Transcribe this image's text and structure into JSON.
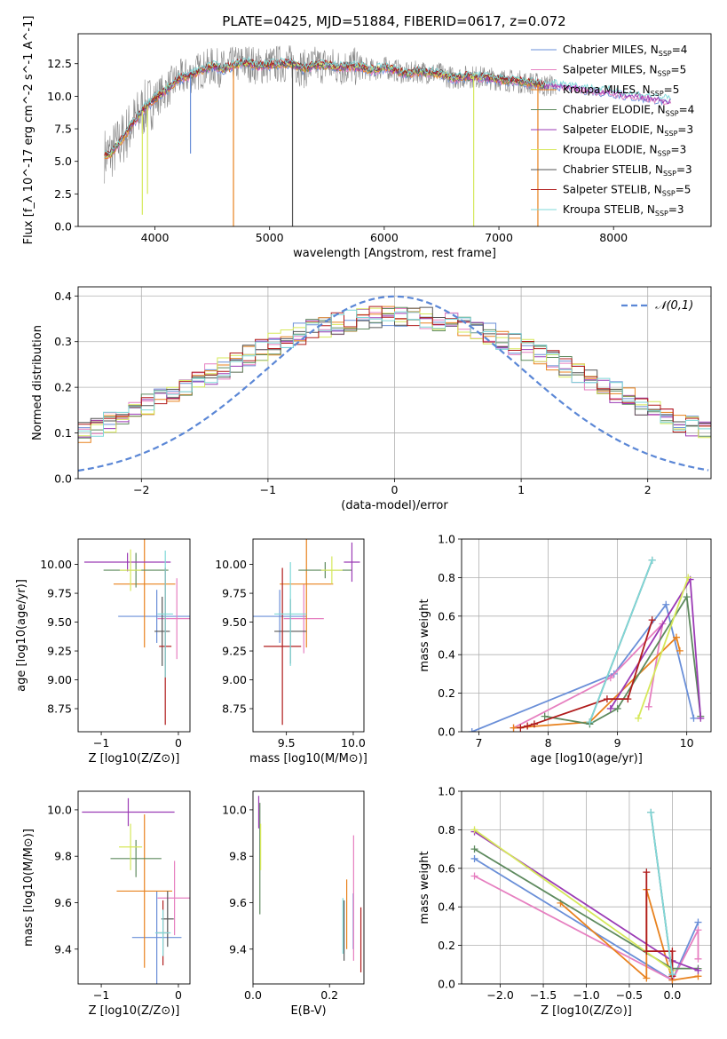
{
  "page_title": "PLATE=0425, MJD=51884, FIBERID=0617, z=0.072",
  "series_names": [
    "Chabrier MILES, N_SSP=4",
    "Salpeter MILES, N_SSP=5",
    "Kroupa MILES, N_SSP=5",
    "Chabrier ELODIE, N_SSP=4",
    "Salpeter ELODIE, N_SSP=3",
    "Kroupa ELODIE, N_SSP=3",
    "Chabrier STELIB, N_SSP=3",
    "Salpeter STELIB, N_SSP=5",
    "Kroupa STELIB, N_SSP=3"
  ],
  "series_colors": [
    "#6a8fd8",
    "#e67fc0",
    "#e8821e",
    "#5e8a5e",
    "#9b3bb5",
    "#d6e85a",
    "#555555",
    "#b01c1c",
    "#7fd8d8"
  ],
  "chart_data": [
    {
      "id": "spectrum",
      "type": "line",
      "title": "PLATE=0425, MJD=51884, FIBERID=0617, z=0.072",
      "xlabel": "wavelength [Angstrom, rest frame]",
      "ylabel": "Flux [f_λ 10^-17 erg cm^-2 s^-1 A^-1]",
      "xlim": [
        3330,
        8850
      ],
      "ylim": [
        0,
        14.8
      ],
      "xticks": [
        "4000",
        "5000",
        "6000",
        "7000",
        "8000"
      ],
      "yticks": [
        "0.0",
        "2.5",
        "5.0",
        "7.5",
        "10.0",
        "12.5"
      ],
      "legend": "right",
      "data_x": [
        3600,
        3700,
        3800,
        3900,
        4000,
        4100,
        4200,
        4300,
        4400,
        4500,
        4600,
        4700,
        4800,
        4900,
        5000,
        5100,
        5200,
        5300,
        5400,
        5500,
        5600,
        5700,
        5800,
        5900,
        6000,
        6100,
        6200,
        6300,
        6400,
        6500,
        6600,
        6700,
        6800,
        6900,
        7000,
        7100,
        7200,
        7300,
        7400,
        7500,
        7600,
        7700,
        7800,
        7900,
        8000,
        8100,
        8200,
        8300,
        8400,
        8500
      ],
      "data_y": [
        5.5,
        6.5,
        7.8,
        9.0,
        9.8,
        10.5,
        11.3,
        11.6,
        12.0,
        12.3,
        12.1,
        12.4,
        12.6,
        12.3,
        12.4,
        12.5,
        12.5,
        12.1,
        12.4,
        12.4,
        12.2,
        12.3,
        12.2,
        12.0,
        12.2,
        12.0,
        11.7,
        11.9,
        11.8,
        11.7,
        11.4,
        11.5,
        11.5,
        11.4,
        11.3,
        11.2,
        11.1,
        11.0,
        10.8,
        10.9,
        10.8,
        10.6,
        10.5,
        10.4,
        10.3,
        10.1,
        10.0,
        9.9,
        9.8,
        9.6
      ],
      "dips": [
        {
          "x": 3890,
          "y": 0.9,
          "series": 5
        },
        {
          "x": 3935,
          "y": 2.5,
          "series": 5
        },
        {
          "x": 4310,
          "y": 5.6,
          "series": 0
        },
        {
          "x": 4685,
          "y": 0.0,
          "series": 2
        },
        {
          "x": 5200,
          "y": 0.0,
          "series": 6
        },
        {
          "x": 6780,
          "y": 0.0,
          "series": 5
        },
        {
          "x": 7340,
          "y": 0.0,
          "series": 2
        }
      ]
    },
    {
      "id": "residuals",
      "type": "step",
      "xlabel": "(data-model)/error",
      "ylabel": "Normed distribution",
      "xlim": [
        -2.5,
        2.5
      ],
      "ylim": [
        0,
        0.42
      ],
      "xticks": [
        -2,
        -1,
        0,
        1,
        2
      ],
      "yticks": [
        0.0,
        0.1,
        0.2,
        0.3,
        0.4
      ],
      "legend_label": "𝒩(0,1)",
      "gauss_color": "#5b87d6"
    },
    {
      "id": "age_vs_Z",
      "type": "errorbar",
      "xlabel": "Z [log10(Z/Z⊙)]",
      "ylabel": "age [log10(age/yr)]",
      "xlim": [
        -1.3,
        0.15
      ],
      "ylim": [
        8.55,
        10.22
      ],
      "xticks": [
        -1,
        0
      ],
      "yticks": [
        8.75,
        9.0,
        9.25,
        9.5,
        9.75,
        10.0
      ],
      "points": [
        {
          "s": 0,
          "x": -0.28,
          "y": 9.55,
          "xe": 0.5,
          "ye": 0.23
        },
        {
          "s": 1,
          "x": -0.02,
          "y": 9.53,
          "xe": 0.25,
          "ye": 0.35
        },
        {
          "s": 2,
          "x": -0.44,
          "y": 9.83,
          "xe": 0.4,
          "ye": 0.55
        },
        {
          "s": 3,
          "x": -0.55,
          "y": 9.95,
          "xe": 0.42,
          "ye": 0.15
        },
        {
          "s": 4,
          "x": -0.66,
          "y": 10.02,
          "xe": 0.56,
          "ye": 0.08
        },
        {
          "s": 5,
          "x": -0.62,
          "y": 9.95,
          "xe": 0.14,
          "ye": 0.18
        },
        {
          "s": 6,
          "x": -0.21,
          "y": 9.42,
          "xe": 0.1,
          "ye": 0.3
        },
        {
          "s": 7,
          "x": -0.17,
          "y": 9.29,
          "xe": 0.08,
          "ye": 0.68
        },
        {
          "s": 8,
          "x": -0.17,
          "y": 9.57,
          "xe": 0.1,
          "ye": 0.55
        }
      ]
    },
    {
      "id": "age_vs_mass",
      "type": "errorbar",
      "xlabel": "mass [log10(M/M⊙)]",
      "ylabel": "",
      "xlim": [
        9.25,
        10.08
      ],
      "ylim": [
        8.55,
        10.22
      ],
      "xticks": [
        9.5,
        10.0
      ],
      "yticks": [
        8.75,
        9.0,
        9.25,
        9.5,
        9.75,
        10.0
      ],
      "points": [
        {
          "s": 0,
          "x": 9.45,
          "y": 9.55,
          "xe": 0.2,
          "ye": 0.23
        },
        {
          "s": 1,
          "x": 9.63,
          "y": 9.53,
          "xe": 0.15,
          "ye": 0.3
        },
        {
          "s": 2,
          "x": 9.65,
          "y": 9.83,
          "xe": 0.2,
          "ye": 0.55
        },
        {
          "s": 3,
          "x": 9.79,
          "y": 9.95,
          "xe": 0.2,
          "ye": 0.07
        },
        {
          "s": 4,
          "x": 9.99,
          "y": 10.02,
          "xe": 0.06,
          "ye": 0.17
        },
        {
          "s": 5,
          "x": 9.84,
          "y": 9.95,
          "xe": 0.08,
          "ye": 0.12
        },
        {
          "s": 6,
          "x": 9.53,
          "y": 9.42,
          "xe": 0.12,
          "ye": 0.28
        },
        {
          "s": 7,
          "x": 9.47,
          "y": 9.29,
          "xe": 0.14,
          "ye": 0.68
        },
        {
          "s": 8,
          "x": 9.53,
          "y": 9.57,
          "xe": 0.12,
          "ye": 0.45
        }
      ]
    },
    {
      "id": "mass_weight_vs_age",
      "type": "line",
      "xlabel": "age [log10(age/yr)]",
      "ylabel": "mass weight",
      "xlim": [
        6.75,
        10.35
      ],
      "ylim": [
        0,
        1.0
      ],
      "xticks": [
        7,
        8,
        9,
        10
      ],
      "yticks": [
        0.0,
        0.2,
        0.4,
        0.6,
        0.8,
        1.0
      ],
      "series": [
        {
          "s": 0,
          "x": [
            6.9,
            8.95,
            9.7,
            10.1
          ],
          "y": [
            0.0,
            0.3,
            0.66,
            0.07
          ]
        },
        {
          "s": 1,
          "x": [
            7.5,
            8.9,
            9.65,
            9.45
          ],
          "y": [
            0.02,
            0.28,
            0.56,
            0.13
          ]
        },
        {
          "s": 2,
          "x": [
            7.5,
            8.6,
            9.85,
            9.9
          ],
          "y": [
            0.02,
            0.05,
            0.49,
            0.42
          ]
        },
        {
          "s": 3,
          "x": [
            7.95,
            8.6,
            9.0,
            10.0,
            10.2
          ],
          "y": [
            0.08,
            0.04,
            0.12,
            0.7,
            0.08
          ]
        },
        {
          "s": 4,
          "x": [
            8.9,
            10.05,
            10.2
          ],
          "y": [
            0.12,
            0.79,
            0.07
          ]
        },
        {
          "s": 5,
          "x": [
            9.3,
            10.02
          ],
          "y": [
            0.07,
            0.8
          ]
        },
        {
          "s": 6,
          "x": [
            8.6,
            9.5
          ],
          "y": [
            0.05,
            0.89
          ]
        },
        {
          "s": 7,
          "x": [
            7.6,
            7.7,
            7.8,
            8.85,
            9.15,
            9.5
          ],
          "y": [
            0.02,
            0.03,
            0.04,
            0.17,
            0.17,
            0.58
          ]
        },
        {
          "s": 8,
          "x": [
            8.6,
            9.5
          ],
          "y": [
            0.05,
            0.89
          ]
        }
      ]
    },
    {
      "id": "mass_vs_Z",
      "type": "errorbar",
      "xlabel": "Z [log10(Z/Z⊙)]",
      "ylabel": "mass [log10(M/M⊙)]",
      "xlim": [
        -1.3,
        0.15
      ],
      "ylim": [
        9.25,
        10.08
      ],
      "xticks": [
        -1,
        0
      ],
      "yticks": [
        9.4,
        9.6,
        9.8,
        10.0
      ],
      "points": [
        {
          "s": 0,
          "x": -0.28,
          "y": 9.45,
          "xe": 0.32,
          "ye": 0.2
        },
        {
          "s": 1,
          "x": -0.05,
          "y": 9.62,
          "xe": 0.22,
          "ye": 0.16
        },
        {
          "s": 2,
          "x": -0.44,
          "y": 9.65,
          "xe": 0.36,
          "ye": 0.33
        },
        {
          "s": 3,
          "x": -0.55,
          "y": 9.79,
          "xe": 0.33,
          "ye": 0.08
        },
        {
          "s": 4,
          "x": -0.65,
          "y": 9.99,
          "xe": 0.6,
          "ye": 0.06
        },
        {
          "s": 5,
          "x": -0.62,
          "y": 9.84,
          "xe": 0.15,
          "ye": 0.1
        },
        {
          "s": 6,
          "x": -0.14,
          "y": 9.53,
          "xe": 0.08,
          "ye": 0.12
        },
        {
          "s": 7,
          "x": -0.2,
          "y": 9.47,
          "xe": 0.08,
          "ye": 0.14
        },
        {
          "s": 8,
          "x": -0.2,
          "y": 9.47,
          "xe": 0.1,
          "ye": 0.1
        }
      ]
    },
    {
      "id": "mass_vs_EBV",
      "type": "errorbar",
      "xlabel": "E(B-V)",
      "ylabel": "",
      "xlim": [
        0.0,
        0.29
      ],
      "ylim": [
        9.25,
        10.08
      ],
      "xticks": [
        0.0,
        0.2
      ],
      "yticks": [
        9.4,
        9.6,
        9.8,
        10.0
      ],
      "points": [
        {
          "s": 0,
          "x": 0.262,
          "y": 9.52,
          "xe": 0.0,
          "ye": 0.12
        },
        {
          "s": 1,
          "x": 0.263,
          "y": 9.62,
          "xe": 0.0,
          "ye": 0.27
        },
        {
          "s": 2,
          "x": 0.245,
          "y": 9.55,
          "xe": 0.0,
          "ye": 0.15
        },
        {
          "s": 3,
          "x": 0.018,
          "y": 9.79,
          "xe": 0.0,
          "ye": 0.24
        },
        {
          "s": 4,
          "x": 0.015,
          "y": 9.99,
          "xe": 0.0,
          "ye": 0.07
        },
        {
          "s": 5,
          "x": 0.02,
          "y": 9.84,
          "xe": 0.0,
          "ye": 0.1
        },
        {
          "s": 6,
          "x": 0.238,
          "y": 9.48,
          "xe": 0.0,
          "ye": 0.13
        },
        {
          "s": 7,
          "x": 0.282,
          "y": 9.44,
          "xe": 0.0,
          "ye": 0.14
        },
        {
          "s": 8,
          "x": 0.235,
          "y": 9.5,
          "xe": 0.0,
          "ye": 0.12
        }
      ]
    },
    {
      "id": "mass_weight_vs_Z",
      "type": "line",
      "xlabel": "Z [log10(Z/Z⊙)]",
      "ylabel": "mass weight",
      "xlim": [
        -2.45,
        0.45
      ],
      "ylim": [
        0,
        1.0
      ],
      "xticks": [
        -2.0,
        -1.5,
        -1.0,
        -0.5,
        0.0
      ],
      "yticks": [
        0.0,
        0.2,
        0.4,
        0.6,
        0.8,
        1.0
      ],
      "series": [
        {
          "s": 0,
          "x": [
            -2.3,
            0.0,
            0.3
          ],
          "y": [
            0.65,
            0.02,
            0.32
          ]
        },
        {
          "s": 1,
          "x": [
            -2.3,
            0.0,
            0.3,
            0.3
          ],
          "y": [
            0.56,
            0.02,
            0.28,
            0.13
          ]
        },
        {
          "s": 2,
          "x": [
            -1.3,
            -0.3,
            -0.3,
            0.0,
            0.3
          ],
          "y": [
            0.42,
            0.03,
            0.49,
            0.02,
            0.04
          ]
        },
        {
          "s": 3,
          "x": [
            -2.3,
            0.0,
            0.3
          ],
          "y": [
            0.7,
            0.08,
            0.08
          ]
        },
        {
          "s": 4,
          "x": [
            -2.3,
            0.0,
            0.3
          ],
          "y": [
            0.79,
            0.12,
            0.07
          ]
        },
        {
          "s": 5,
          "x": [
            -2.3,
            0.0
          ],
          "y": [
            0.8,
            0.07
          ]
        },
        {
          "s": 6,
          "x": [
            -0.25,
            0.0
          ],
          "y": [
            0.89,
            0.05
          ]
        },
        {
          "s": 7,
          "x": [
            -0.3,
            -0.3,
            0.0,
            0.0
          ],
          "y": [
            0.58,
            0.17,
            0.17,
            0.04
          ]
        },
        {
          "s": 8,
          "x": [
            -0.25,
            0.0
          ],
          "y": [
            0.89,
            0.05
          ]
        }
      ]
    }
  ]
}
